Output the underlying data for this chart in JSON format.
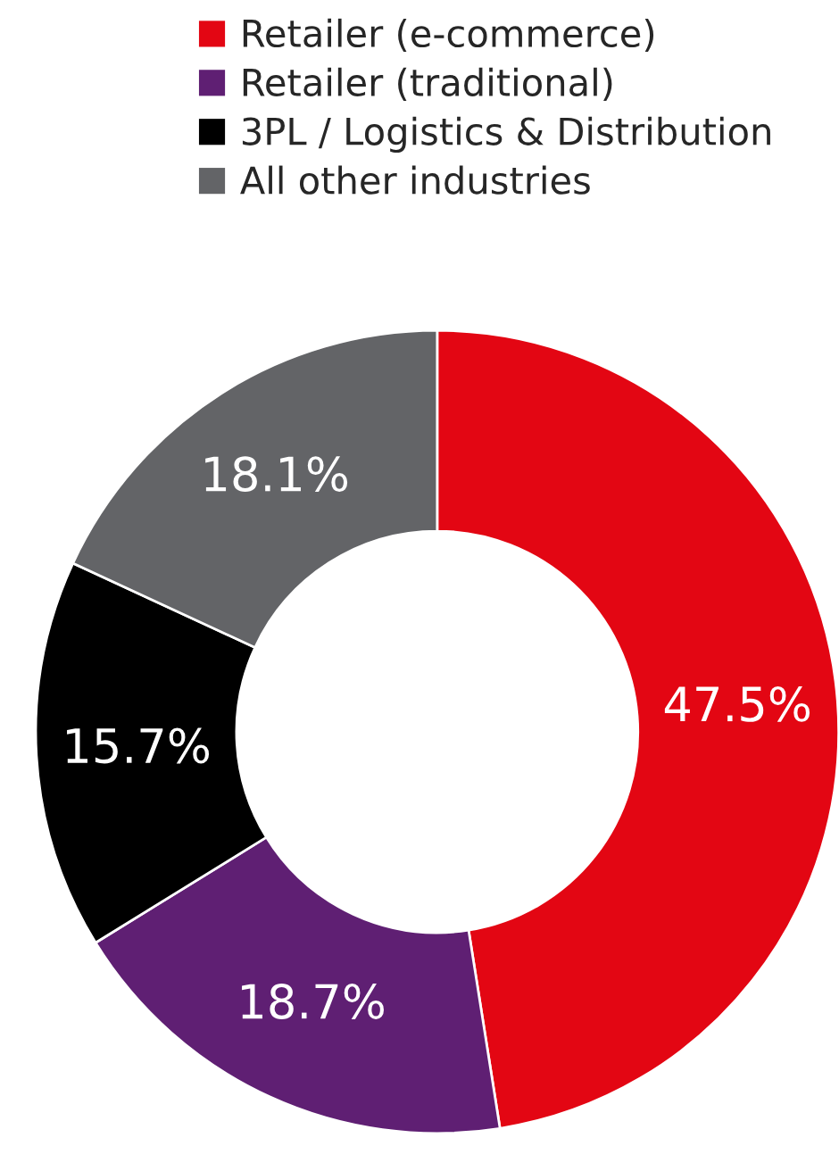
{
  "chart_data": {
    "type": "donut",
    "categories": [
      "Retailer (e-commerce)",
      "Retailer (traditional)",
      "3PL / Logistics & Distribution",
      "All other industries"
    ],
    "values": [
      47.5,
      18.7,
      15.7,
      18.1
    ],
    "colors": [
      "#e30613",
      "#5f1f73",
      "#000000",
      "#636467"
    ],
    "value_labels": [
      "47.5%",
      "18.7%",
      "15.7%",
      "18.1%"
    ],
    "legend": "top"
  }
}
